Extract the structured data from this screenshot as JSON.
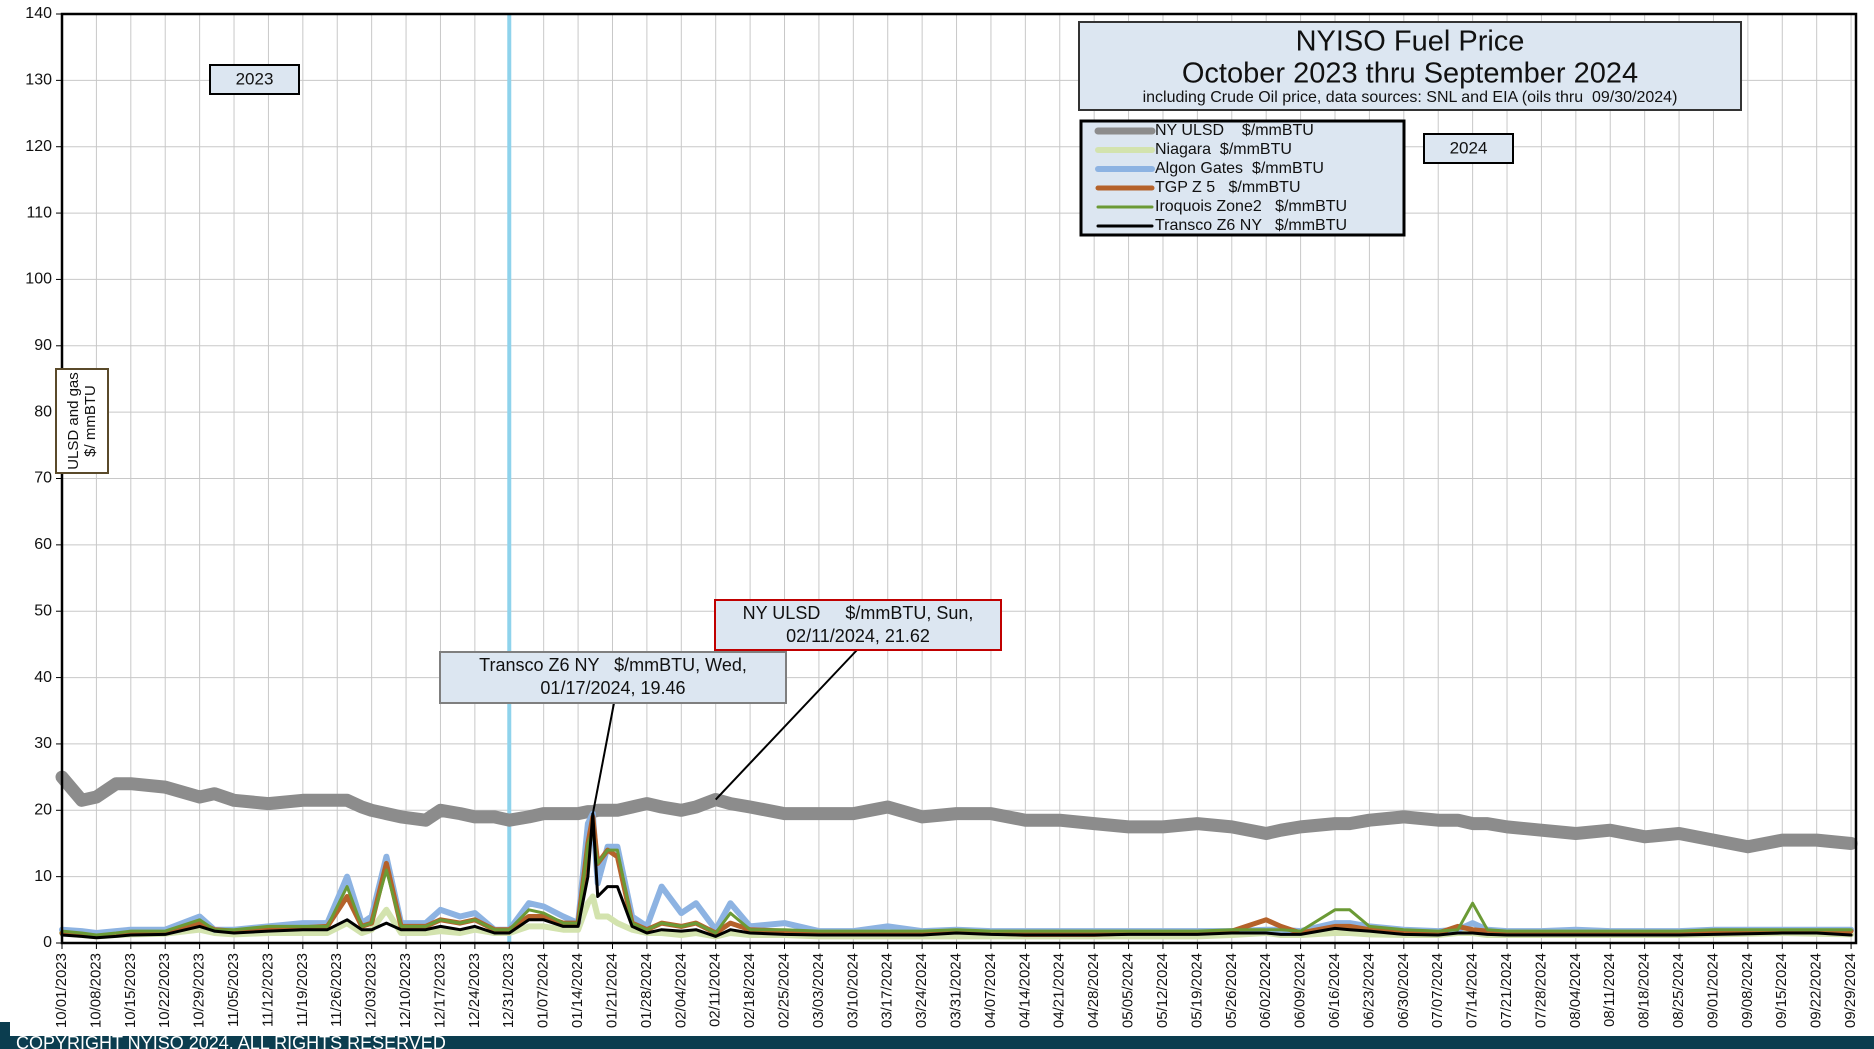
{
  "chart_data": {
    "type": "line",
    "title": [
      "NYISO Fuel Price",
      "October 2023 thru September 2024"
    ],
    "subtitle": "including Crude Oil price, data sources: SNL and EIA (oils thru  09/30/2024)",
    "y_label": [
      "ULSD and gas",
      "$/ mmBTU"
    ],
    "year_labels": [
      "2023",
      "2024"
    ],
    "divider": {
      "date": "12/31/2023",
      "color": "#8fd3ec"
    },
    "footer": "COPYRIGHT NYISO 2024. ALL RIGHTS RESERVED",
    "annotations": [
      {
        "lines": [
          "NY ULSD     $/mmBTU, Sun,",
          "02/11/2024, 21.62"
        ],
        "border": "#c00000"
      },
      {
        "lines": [
          "Transco Z6 NY   $/mmBTU, Wed,",
          "01/17/2024, 19.46"
        ],
        "border": "#7f7f7f"
      }
    ],
    "ylim": [
      0,
      140
    ],
    "yticks": [
      0,
      10,
      20,
      30,
      40,
      50,
      60,
      70,
      80,
      90,
      100,
      110,
      120,
      130,
      140
    ],
    "grid": true,
    "xlim": [
      "10/01/2023",
      "09/30/2024"
    ],
    "xticks": [
      "10/01/2023",
      "10/08/2023",
      "10/15/2023",
      "10/22/2023",
      "10/29/2023",
      "11/05/2023",
      "11/12/2023",
      "11/19/2023",
      "11/26/2023",
      "12/03/2023",
      "12/10/2023",
      "12/17/2023",
      "12/24/2023",
      "12/31/2023",
      "01/07/2024",
      "01/14/2024",
      "01/21/2024",
      "01/28/2024",
      "02/04/2024",
      "02/11/2024",
      "02/18/2024",
      "02/25/2024",
      "03/03/2024",
      "03/10/2024",
      "03/17/2024",
      "03/24/2024",
      "03/31/2024",
      "04/07/2024",
      "04/14/2024",
      "04/21/2024",
      "04/28/2024",
      "05/05/2024",
      "05/12/2024",
      "05/19/2024",
      "05/26/2024",
      "06/02/2024",
      "06/09/2024",
      "06/16/2024",
      "06/23/2024",
      "06/30/2024",
      "07/07/2024",
      "07/14/2024",
      "07/21/2024",
      "07/28/2024",
      "08/04/2024",
      "08/11/2024",
      "08/18/2024",
      "08/25/2024",
      "09/01/2024",
      "09/08/2024",
      "09/15/2024",
      "09/22/2024",
      "09/29/2024"
    ],
    "x": [
      "10/01/2023",
      "10/05/2023",
      "10/08/2023",
      "10/12/2023",
      "10/15/2023",
      "10/22/2023",
      "10/29/2023",
      "11/01/2023",
      "11/05/2023",
      "11/12/2023",
      "11/19/2023",
      "11/24/2023",
      "11/28/2023",
      "12/01/2023",
      "12/03/2023",
      "12/06/2023",
      "12/09/2023",
      "12/14/2023",
      "12/17/2023",
      "12/21/2023",
      "12/24/2023",
      "12/28/2023",
      "12/31/2023",
      "01/04/2024",
      "01/07/2024",
      "01/11/2024",
      "01/14/2024",
      "01/16/2024",
      "01/17/2024",
      "01/18/2024",
      "01/20/2024",
      "01/22/2024",
      "01/25/2024",
      "01/28/2024",
      "01/31/2024",
      "02/04/2024",
      "02/07/2024",
      "02/11/2024",
      "02/14/2024",
      "02/18/2024",
      "02/25/2024",
      "03/03/2024",
      "03/10/2024",
      "03/17/2024",
      "03/24/2024",
      "03/31/2024",
      "04/07/2024",
      "04/14/2024",
      "04/21/2024",
      "04/28/2024",
      "05/05/2024",
      "05/12/2024",
      "05/19/2024",
      "05/26/2024",
      "06/02/2024",
      "06/05/2024",
      "06/09/2024",
      "06/16/2024",
      "06/19/2024",
      "06/23/2024",
      "06/30/2024",
      "07/07/2024",
      "07/11/2024",
      "07/14/2024",
      "07/17/2024",
      "07/21/2024",
      "07/28/2024",
      "08/04/2024",
      "08/11/2024",
      "08/18/2024",
      "08/25/2024",
      "09/01/2024",
      "09/08/2024",
      "09/15/2024",
      "09/22/2024",
      "09/29/2024"
    ],
    "series": [
      {
        "name": "NY ULSD    $/mmBTU",
        "color": "#8c8c8c",
        "width": 13,
        "values": [
          25,
          21.5,
          22,
          24,
          24,
          23.5,
          22,
          22.5,
          21.5,
          21,
          21.5,
          21.5,
          21.5,
          20.5,
          20,
          19.5,
          19,
          18.5,
          20,
          19.5,
          19,
          19,
          18.5,
          19,
          19.5,
          19.5,
          19.5,
          19.8,
          19.8,
          20,
          20,
          20,
          20.5,
          21,
          20.5,
          20,
          20.5,
          21.62,
          21,
          20.5,
          19.5,
          19.5,
          19.5,
          20.5,
          19,
          19.5,
          19.5,
          18.5,
          18.5,
          18,
          17.5,
          17.5,
          18,
          17.5,
          16.5,
          17,
          17.5,
          18,
          18,
          18.5,
          19,
          18.5,
          18.5,
          18,
          18,
          17.5,
          17,
          16.5,
          17,
          16,
          16.5,
          15.5,
          14.5,
          15.5,
          15.5,
          15
        ]
      },
      {
        "name": "Niagara  $/mmBTU",
        "color": "#d3e3ae",
        "width": 6,
        "values": [
          1.5,
          1.2,
          1,
          1.2,
          1.3,
          1.4,
          2,
          1.5,
          1.3,
          1.5,
          1.5,
          1.5,
          3,
          1.5,
          2,
          5,
          1.5,
          1.5,
          1.8,
          1.5,
          2,
          1.5,
          1.5,
          2.5,
          2.5,
          2,
          2,
          6,
          7,
          4,
          4,
          3,
          2,
          1.5,
          1.5,
          1.2,
          1.5,
          1,
          1.5,
          1.2,
          1.2,
          1,
          1,
          1,
          1,
          1,
          1,
          1,
          1,
          1,
          1,
          1,
          1,
          1.2,
          1.5,
          1.2,
          1.2,
          1.5,
          1.5,
          1.3,
          1.2,
          1.2,
          1.5,
          1.5,
          1.2,
          1.2,
          1.2,
          1.2,
          1.2,
          1.2,
          1.2,
          1.3,
          1.4,
          1.5,
          1.4,
          1.3
        ]
      },
      {
        "name": "Algon Gates  $/mmBTU",
        "color": "#8db3e2",
        "width": 6,
        "values": [
          2,
          1.8,
          1.5,
          1.8,
          2,
          2,
          4,
          2,
          2,
          2.5,
          3,
          3,
          10,
          3,
          4,
          13,
          3,
          3,
          5,
          4,
          4.5,
          2,
          2,
          6,
          5.5,
          4,
          3,
          18,
          19.5,
          9,
          14.5,
          14.5,
          4,
          2.5,
          8.5,
          4.5,
          6,
          2,
          6,
          2.5,
          3,
          1.8,
          1.8,
          2.5,
          1.8,
          2,
          1.8,
          1.8,
          1.8,
          1.8,
          1.8,
          1.8,
          1.8,
          1.8,
          2,
          2,
          1.8,
          3,
          3,
          2.5,
          2,
          1.8,
          2,
          3,
          2,
          1.8,
          1.8,
          2,
          1.8,
          1.8,
          1.8,
          2,
          2,
          2,
          2,
          2
        ]
      },
      {
        "name": "TGP Z 5   $/mmBTU",
        "color": "#b5622a",
        "width": 5,
        "values": [
          1.5,
          1.3,
          1,
          1.2,
          1.5,
          1.5,
          3,
          2,
          1.8,
          2,
          2.3,
          2.5,
          7,
          2.5,
          3,
          12,
          2.5,
          2.5,
          3.5,
          3,
          3.5,
          2,
          2,
          4,
          4,
          3,
          3,
          15,
          19,
          12,
          14,
          13,
          3,
          2,
          3,
          2.5,
          3,
          1.5,
          3,
          2,
          1.8,
          1.5,
          1.5,
          1.5,
          1.5,
          1.8,
          1.5,
          1.3,
          1.3,
          1.3,
          1.5,
          1.5,
          1.5,
          1.8,
          3.5,
          2.5,
          1.5,
          2.5,
          2.5,
          2,
          1.5,
          1.5,
          2.5,
          2,
          1.8,
          1.5,
          1.5,
          1.5,
          1.5,
          1.5,
          1.5,
          1.5,
          1.8,
          1.8,
          1.8,
          1.8
        ]
      },
      {
        "name": "Iroquois Zone2   $/mmBTU",
        "color": "#6b9a35",
        "width": 3,
        "values": [
          1.8,
          1.5,
          1.2,
          1.5,
          1.8,
          1.8,
          3.5,
          2,
          2,
          2.5,
          2.5,
          2.5,
          8.5,
          2.5,
          3,
          11,
          2.5,
          2.5,
          3.5,
          3,
          3.5,
          2,
          2,
          5,
          4.5,
          3,
          3,
          15,
          17,
          12,
          14,
          14,
          3,
          2,
          3,
          2.5,
          3,
          1.5,
          4.5,
          2,
          2,
          1.8,
          1.8,
          1.8,
          1.8,
          2,
          1.8,
          1.8,
          1.8,
          1.8,
          1.8,
          1.8,
          1.8,
          2,
          2,
          2,
          1.8,
          5,
          5,
          2.5,
          2,
          1.8,
          2,
          6,
          2,
          1.8,
          1.8,
          1.8,
          1.8,
          1.8,
          1.8,
          2,
          2,
          2,
          2,
          2
        ]
      },
      {
        "name": "Transco Z6 NY   $/mmBTU",
        "color": "#000000",
        "width": 3,
        "values": [
          1.2,
          1,
          0.8,
          1,
          1.2,
          1.3,
          2.5,
          1.8,
          1.5,
          1.8,
          2,
          2,
          3.5,
          2,
          2,
          3,
          2,
          2,
          2.5,
          2,
          2.5,
          1.5,
          1.5,
          3.5,
          3.5,
          2.5,
          2.5,
          10,
          19.46,
          7,
          8.5,
          8.5,
          2.5,
          1.5,
          2,
          1.8,
          2,
          1,
          2,
          1.5,
          1.3,
          1.2,
          1.2,
          1.2,
          1.2,
          1.5,
          1.3,
          1.2,
          1.2,
          1.2,
          1.3,
          1.3,
          1.3,
          1.5,
          1.5,
          1.3,
          1.3,
          2.2,
          2,
          1.8,
          1.3,
          1.2,
          1.5,
          1.5,
          1.3,
          1.2,
          1.2,
          1.2,
          1.2,
          1.2,
          1.2,
          1.3,
          1.4,
          1.5,
          1.5,
          1.2
        ]
      }
    ]
  }
}
